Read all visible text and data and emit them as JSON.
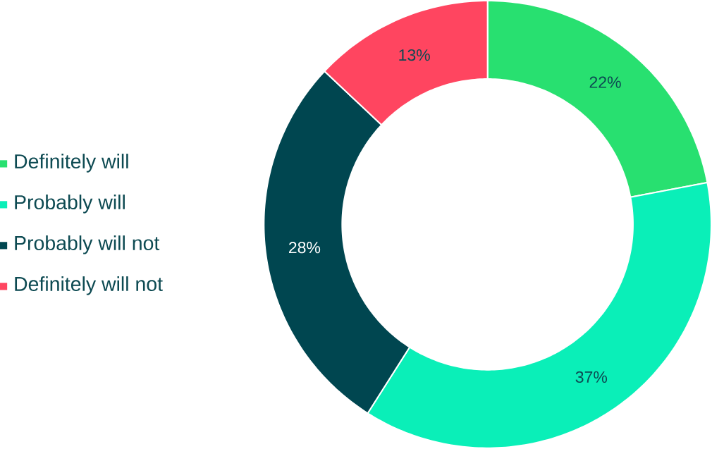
{
  "chart_data": {
    "type": "donut",
    "categories": [
      "Definitely will",
      "Probably will",
      "Probably will not",
      "Definitely will not"
    ],
    "values": [
      22,
      37,
      28,
      13
    ],
    "value_labels": [
      "22%",
      "37%",
      "28%",
      "13%"
    ],
    "colors": [
      "#28e070",
      "#0aefb8",
      "#004650",
      "#ff4560"
    ],
    "legend": "left"
  }
}
